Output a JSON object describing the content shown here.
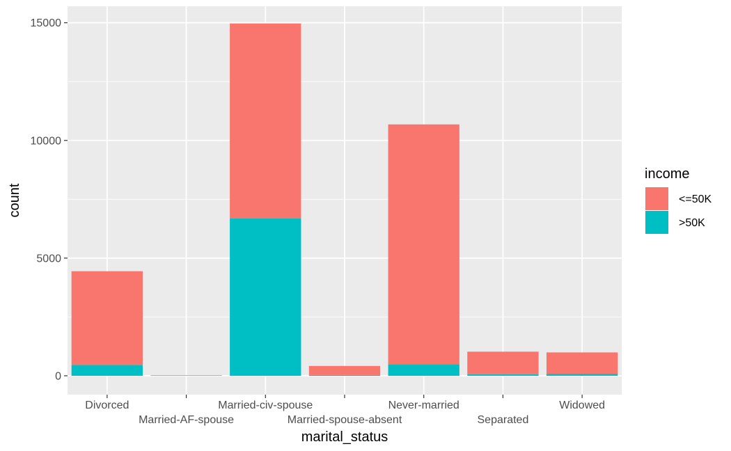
{
  "chart_data": {
    "type": "bar",
    "stacked": true,
    "xlabel": "marital_status",
    "ylabel": "count",
    "categories": [
      "Divorced",
      "Married-AF-spouse",
      "Married-civ-spouse",
      "Married-spouse-absent",
      "Never-married",
      "Separated",
      "Widowed"
    ],
    "series": [
      {
        "name": "<=50K",
        "color": "#F8766D",
        "values": [
          3980,
          13,
          8280,
          384,
          10190,
          959,
          908
        ]
      },
      {
        "name": ">50K",
        "color": "#00BFC4",
        "values": [
          463,
          10,
          6690,
          34,
          491,
          66,
          85
        ]
      }
    ],
    "ylim": [
      -800,
      15700
    ],
    "yticks": [
      0,
      5000,
      10000,
      15000
    ],
    "ytick_labels": [
      "0",
      "5000",
      "10000",
      "15000"
    ],
    "grid": true,
    "legend": {
      "title": "income",
      "position": "right",
      "entries": [
        "<=50K",
        ">50K"
      ]
    },
    "colors": {
      "panel": "#EBEBEB",
      "grid": "#FFFFFF",
      "axis_text": "#4D4D4D"
    }
  }
}
